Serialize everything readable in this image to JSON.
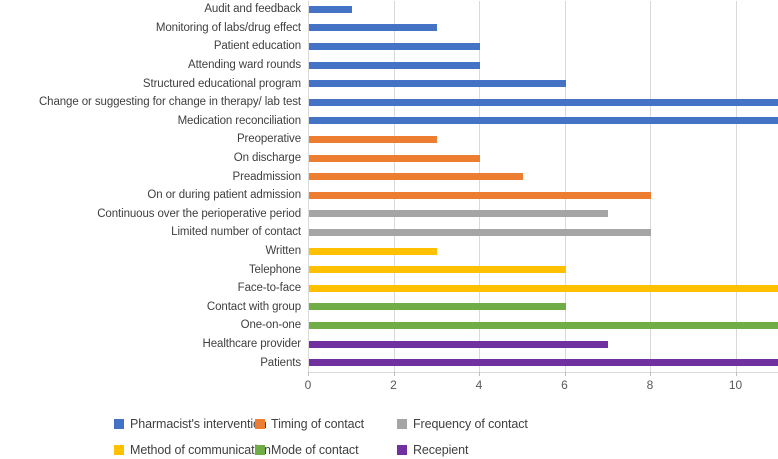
{
  "chart_data": {
    "type": "bar",
    "orientation": "horizontal",
    "title": "",
    "xlabel": "",
    "ylabel": "",
    "xlim": [
      0,
      11
    ],
    "xticks": [
      0,
      2,
      4,
      6,
      8,
      10
    ],
    "grid": true,
    "legend_position": "bottom",
    "items": [
      {
        "label": "Audit and feedback",
        "value": 1,
        "group": "pharmacist"
      },
      {
        "label": "Monitoring of labs/drug effect",
        "value": 3,
        "group": "pharmacist"
      },
      {
        "label": "Patient education",
        "value": 4,
        "group": "pharmacist"
      },
      {
        "label": "Attending ward rounds",
        "value": 4,
        "group": "pharmacist"
      },
      {
        "label": "Structured educational program",
        "value": 6,
        "group": "pharmacist"
      },
      {
        "label": "Change or suggesting for change in therapy/ lab test",
        "value": 11,
        "group": "pharmacist"
      },
      {
        "label": "Medication reconciliation",
        "value": 11,
        "group": "pharmacist"
      },
      {
        "label": "Preoperative",
        "value": 3,
        "group": "timing"
      },
      {
        "label": "On discharge",
        "value": 4,
        "group": "timing"
      },
      {
        "label": "Preadmission",
        "value": 5,
        "group": "timing"
      },
      {
        "label": "On or during patient admission",
        "value": 8,
        "group": "timing"
      },
      {
        "label": "Continuous over the perioperative period",
        "value": 7,
        "group": "frequency"
      },
      {
        "label": "Limited number of contact",
        "value": 8,
        "group": "frequency"
      },
      {
        "label": "Written",
        "value": 3,
        "group": "method"
      },
      {
        "label": "Telephone",
        "value": 6,
        "group": "method"
      },
      {
        "label": "Face-to-face",
        "value": 11,
        "group": "method"
      },
      {
        "label": "Contact with group",
        "value": 6,
        "group": "mode"
      },
      {
        "label": "One-on-one",
        "value": 11,
        "group": "mode"
      },
      {
        "label": "Healthcare provider",
        "value": 7,
        "group": "recipient"
      },
      {
        "label": "Patients",
        "value": 11,
        "group": "recipient"
      }
    ],
    "group_colors": {
      "pharmacist": "#4472c4",
      "timing": "#ed7d31",
      "frequency": "#a5a5a5",
      "method": "#ffc000",
      "mode": "#70ad47",
      "recipient": "#7030a0"
    },
    "legend": [
      {
        "label": "Pharmacist's intervention",
        "group": "pharmacist"
      },
      {
        "label": "Timing of contact",
        "group": "timing"
      },
      {
        "label": "Frequency of contact",
        "group": "frequency"
      },
      {
        "label": "Method of communication",
        "group": "method"
      },
      {
        "label": "Mode of contact",
        "group": "mode"
      },
      {
        "label": "Recepient",
        "group": "recipient"
      }
    ]
  },
  "style_colors": {
    "gridline": "#d9d9d9",
    "axis_text": "#595959",
    "label_text": "#404040"
  }
}
